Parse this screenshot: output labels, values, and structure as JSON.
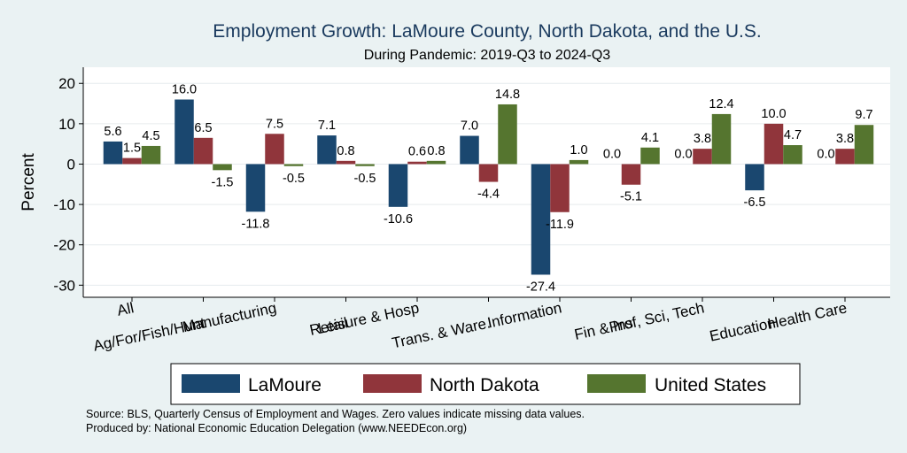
{
  "chart_data": {
    "type": "bar",
    "title": "Employment Growth: LaMoure County, North Dakota, and the U.S.",
    "subtitle": "During Pandemic: 2019-Q3 to 2024-Q3",
    "ylabel": "Percent",
    "ylim": [
      -33,
      24
    ],
    "yticks": [
      20,
      10,
      0,
      -10,
      -20,
      -30
    ],
    "grid": true,
    "legend_position": "bottom",
    "categories": [
      "All",
      "Ag/For/Fish/Hunt",
      "Manufacturing",
      "Retail",
      "Leisure & Hosp",
      "Trans. & Ware.",
      "Information",
      "Fin & Ins",
      "Prof, Sci, Tech",
      "Education",
      "Health Care"
    ],
    "series": [
      {
        "name": "LaMoure",
        "color": "#1a476f",
        "values": [
          5.6,
          16.0,
          -11.8,
          7.1,
          -10.6,
          7.0,
          -27.4,
          0.0,
          0.0,
          -6.5,
          0.0
        ],
        "labels": [
          "5.6",
          "16.0",
          "-11.8",
          "7.1",
          "-10.6",
          "7.0",
          "-27.4",
          "0.0",
          "0.0",
          "-6.5",
          "0.0"
        ]
      },
      {
        "name": "North Dakota",
        "color": "#90353b",
        "values": [
          1.5,
          6.5,
          7.5,
          0.8,
          0.6,
          -4.4,
          -11.9,
          -5.1,
          3.8,
          10.0,
          3.8
        ],
        "labels": [
          "1.5",
          "6.5",
          "7.5",
          "0.8",
          "0.6",
          "-4.4",
          "-11.9",
          "-5.1",
          "3.8",
          "10.0",
          "3.8"
        ]
      },
      {
        "name": "United States",
        "color": "#55752f",
        "values": [
          4.5,
          -1.5,
          -0.5,
          -0.5,
          0.8,
          14.8,
          1.0,
          4.1,
          12.4,
          4.7,
          9.7
        ],
        "labels": [
          "4.5",
          "-1.5",
          "-0.5",
          "-0.5",
          "0.8",
          "14.8",
          "1.0",
          "4.1",
          "12.4",
          "4.7",
          "9.7"
        ]
      }
    ]
  },
  "footer": {
    "source": "Source: BLS, Quarterly Census of Employment and Wages. Zero values indicate missing data values.",
    "produced": "Produced by: National Economic Education Delegation (www.NEEDEcon.org)"
  },
  "colors": {
    "background": "#eaf2f3",
    "plot_background": "#ffffff",
    "title": "#1a3a5e",
    "grid": "#e6ebee"
  }
}
